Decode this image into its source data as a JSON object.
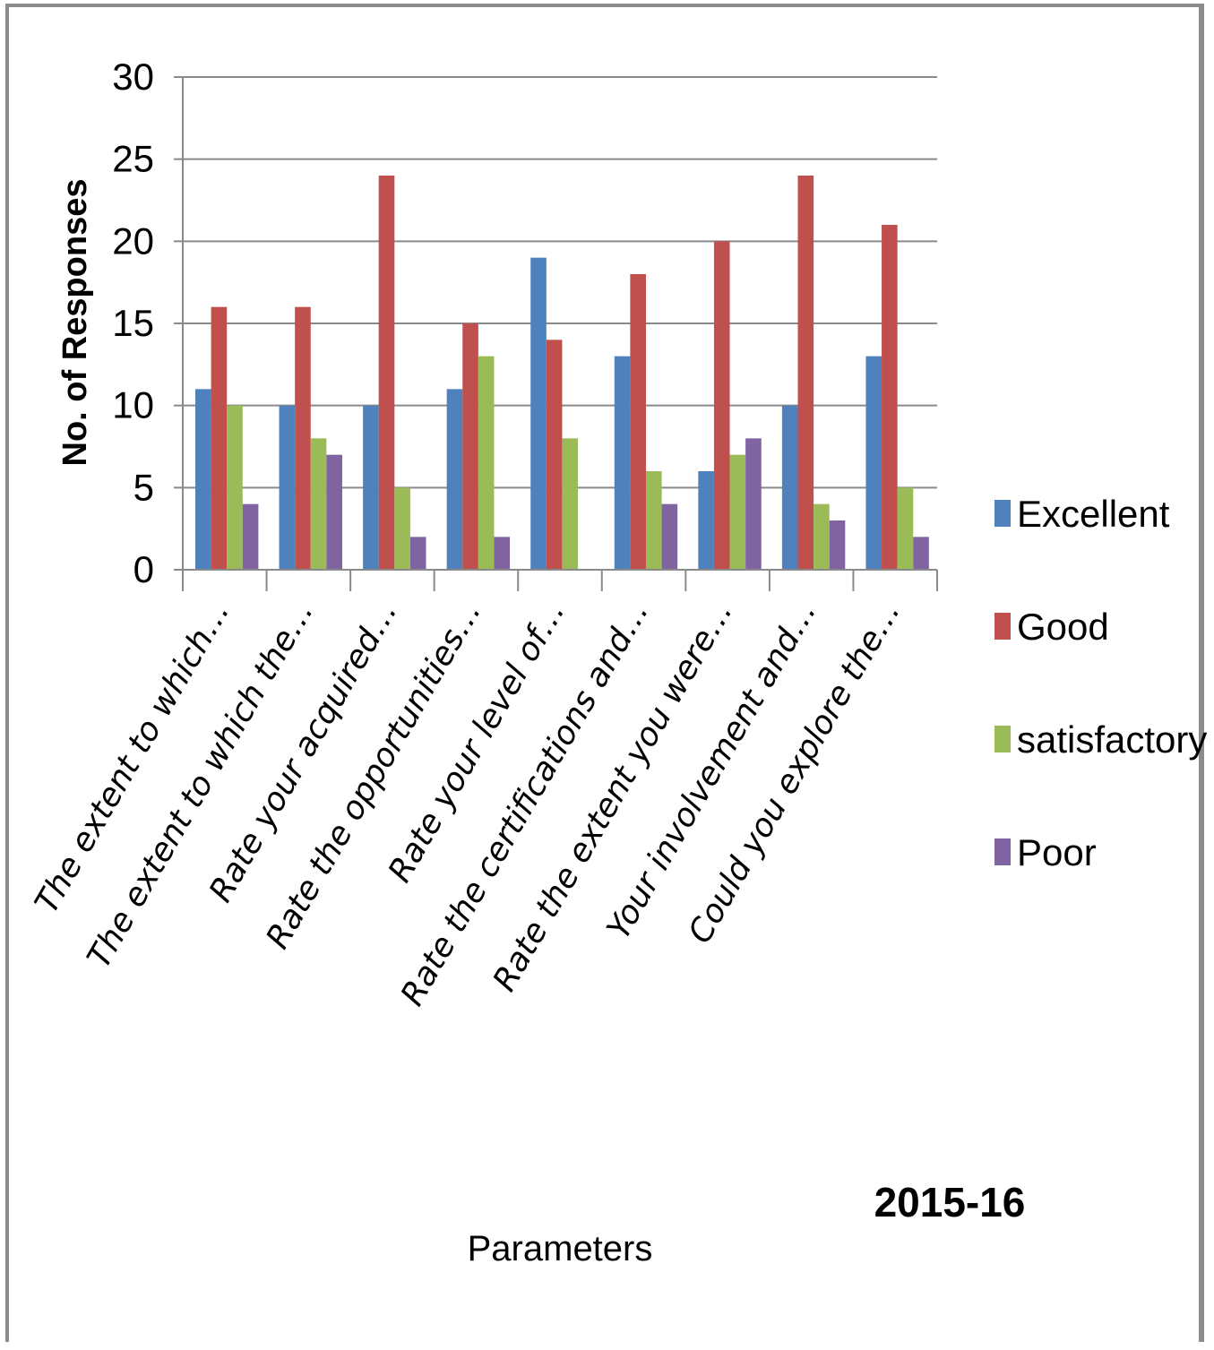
{
  "chart_data": {
    "type": "bar",
    "title": "",
    "ylabel": "No. of Responses",
    "xlabel": "Parameters",
    "annotation": "2015-16",
    "ylim": [
      0,
      30
    ],
    "yticks": [
      0,
      5,
      10,
      15,
      20,
      25,
      30
    ],
    "grid": true,
    "legend_position": "right",
    "categories": [
      "The extent to which…",
      "The extent to which the…",
      "Rate your acquired…",
      "Rate the opportunities…",
      "Rate your level of…",
      "Rate the certifications and…",
      "Rate the extent you were…",
      "Your involvement and…",
      "Could you explore the…"
    ],
    "series": [
      {
        "name": "Excellent",
        "color": "#4f81bd",
        "values": [
          11,
          10,
          10,
          11,
          19,
          13,
          6,
          10,
          13
        ]
      },
      {
        "name": "Good",
        "color": "#c0504d",
        "values": [
          16,
          16,
          24,
          15,
          14,
          18,
          20,
          24,
          21
        ]
      },
      {
        "name": "satisfactory",
        "color": "#9bbb59",
        "values": [
          10,
          8,
          5,
          13,
          8,
          6,
          7,
          4,
          5
        ]
      },
      {
        "name": "Poor",
        "color": "#8064a2",
        "values": [
          4,
          7,
          2,
          2,
          0,
          4,
          8,
          3,
          2
        ]
      }
    ]
  }
}
